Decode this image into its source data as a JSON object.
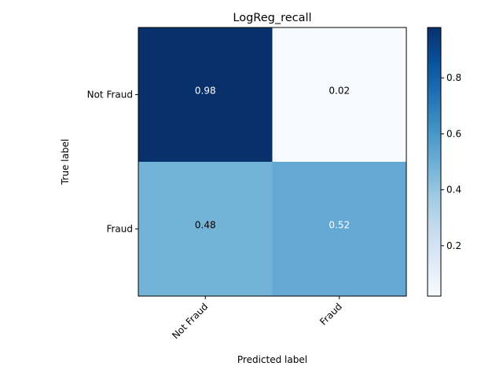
{
  "chart_data": {
    "type": "heatmap",
    "title": "LogReg_recall",
    "xlabel": "Predicted label",
    "ylabel": "True label",
    "x_categories": [
      "Not Fraud",
      "Fraud"
    ],
    "y_categories": [
      "Not Fraud",
      "Fraud"
    ],
    "values": [
      [
        0.98,
        0.02
      ],
      [
        0.48,
        0.52
      ]
    ],
    "cell_labels": [
      [
        "0.98",
        "0.02"
      ],
      [
        "0.48",
        "0.52"
      ]
    ],
    "colormap": "Blues",
    "color_range": [
      0.02,
      0.98
    ],
    "colorbar": {
      "ticks": [
        0.2,
        0.4,
        0.6,
        0.8
      ],
      "tick_labels": [
        "0.2",
        "0.4",
        "0.6",
        "0.8"
      ]
    },
    "grid": false
  }
}
